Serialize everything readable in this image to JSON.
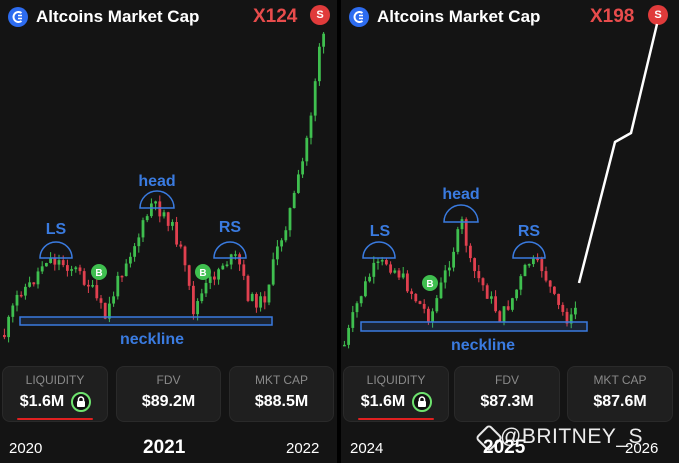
{
  "panels": [
    {
      "title": "Altcoins Market Cap",
      "multiplier": "X124",
      "badge": "S",
      "pattern": {
        "left_shoulder": "LS",
        "head": "head",
        "right_shoulder": "RS",
        "neckline": "neckline",
        "buy_marker": "B"
      },
      "stats": [
        {
          "label": "LIQUIDITY",
          "value": "$1.6M",
          "locked": true
        },
        {
          "label": "FDV",
          "value": "$89.2M"
        },
        {
          "label": "MKT CAP",
          "value": "$88.5M"
        }
      ],
      "years": [
        "2020",
        "2021",
        "2022"
      ]
    },
    {
      "title": "Altcoins Market Cap",
      "multiplier": "X198",
      "badge": "S",
      "pattern": {
        "left_shoulder": "LS",
        "head": "head",
        "right_shoulder": "RS",
        "neckline": "neckline",
        "buy_marker": "B"
      },
      "stats": [
        {
          "label": "LIQUIDITY",
          "value": "$1.6M",
          "locked": true
        },
        {
          "label": "FDV",
          "value": "$87.3M"
        },
        {
          "label": "MKT CAP",
          "value": "$87.6M"
        }
      ],
      "years": [
        "2024",
        "2025",
        "2026"
      ]
    }
  ],
  "watermark": "@BRITNEY_S",
  "colors": {
    "up": "#3fbf4f",
    "down": "#e0404f",
    "annotation": "#3a7be0",
    "multiplier": "#e84c4c",
    "locked": "#6ee36e"
  },
  "chart_data": [
    {
      "type": "candlestick",
      "title": "Altcoins Market Cap",
      "x_ticks": [
        "2020",
        "2021",
        "2022"
      ],
      "annotations": [
        "LS",
        "head",
        "RS",
        "neckline",
        "B",
        "B"
      ],
      "summary": "head-and-shoulders base above a neckline followed by a vertical breakout",
      "normalized_levels": {
        "neckline": 0.3,
        "left_shoulder_peak": 0.48,
        "head_peak": 0.68,
        "right_shoulder_peak": 0.48,
        "breakout_high": 1.0
      }
    },
    {
      "type": "candlestick",
      "title": "Altcoins Market Cap",
      "x_ticks": [
        "2024",
        "2025",
        "2026"
      ],
      "annotations": [
        "LS",
        "head",
        "RS",
        "neckline",
        "B"
      ],
      "summary": "head-and-shoulders base above a neckline, projected breakout line drawn upward",
      "normalized_levels": {
        "neckline": 0.3,
        "left_shoulder_peak": 0.48,
        "head_peak": 0.68,
        "right_shoulder_peak": 0.48,
        "projection_high": 1.0
      }
    }
  ]
}
